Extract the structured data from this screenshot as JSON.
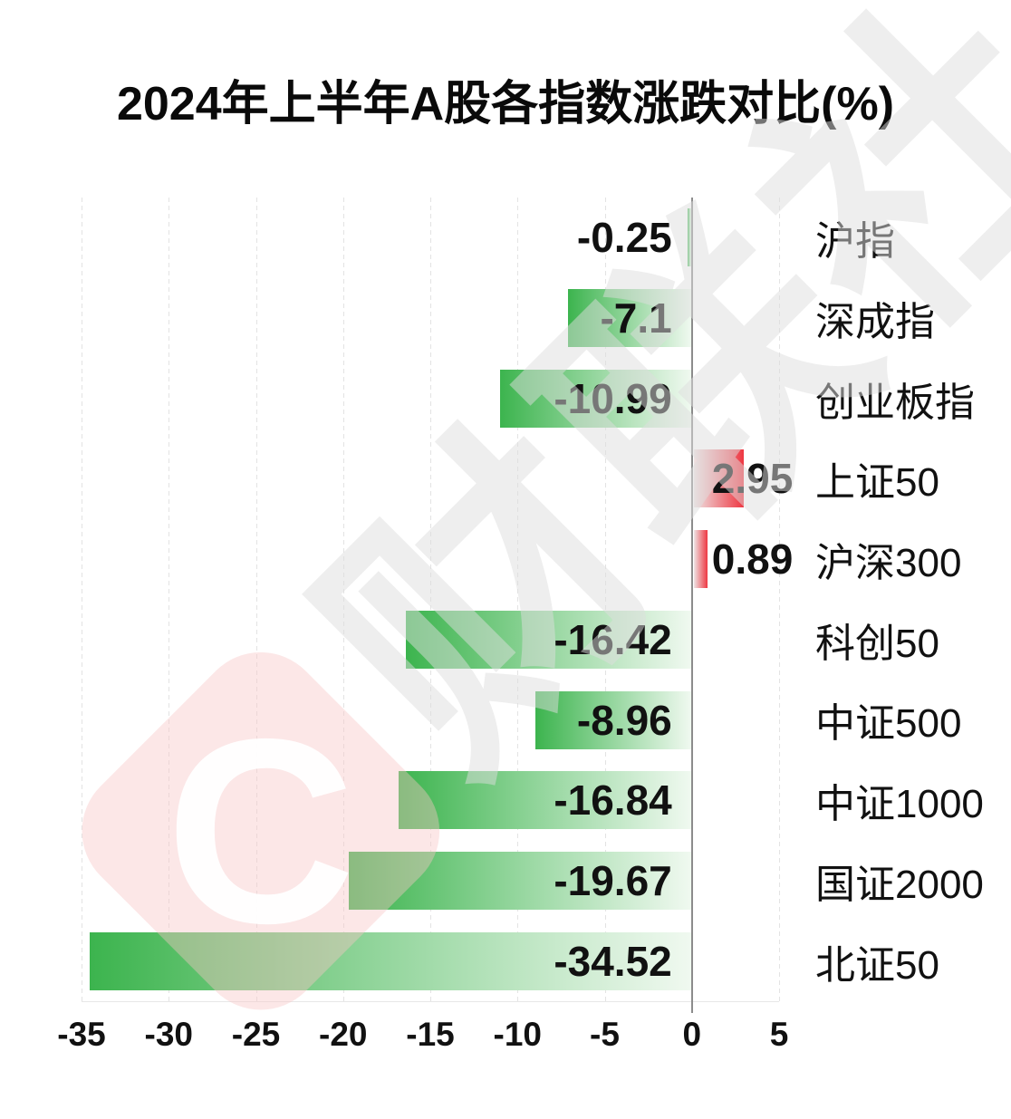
{
  "title": "2024年上半年A股各指数涨跌对比(%)",
  "watermark": {
    "logo_letter": "C",
    "text": "财联社"
  },
  "colors": {
    "negative_start": "#3cb44e",
    "negative_end": "#f0f9f0",
    "positive_start": "#eee3e3",
    "positive_end": "#ee3742",
    "axis_line": "#8c8c8c",
    "grid_line": "#e3e3e3",
    "label_text": "#111111",
    "watermark_text": "rgba(222,222,222,0.5)",
    "watermark_logo_bg": "rgba(247,198,198,0.42)"
  },
  "chart_data": {
    "type": "bar",
    "orientation": "horizontal",
    "title": "2024年上半年A股各指数涨跌对比(%)",
    "categories": [
      "沪指",
      "深成指",
      "创业板指",
      "上证50",
      "沪深300",
      "科创50",
      "中证500",
      "中证1000",
      "国证2000",
      "北证50"
    ],
    "values": [
      -0.25,
      -7.1,
      -10.99,
      2.95,
      0.89,
      -16.42,
      -8.96,
      -16.84,
      -19.67,
      -34.52
    ],
    "labels": [
      "-0.25",
      "-7.1",
      "-10.99",
      "2.95",
      "0.89",
      "-16.42",
      "-8.96",
      "-16.84",
      "-19.67",
      "-34.52"
    ],
    "xlim": [
      -35,
      5
    ],
    "x_ticks": [
      -35,
      -30,
      -25,
      -20,
      -15,
      -10,
      -5,
      0,
      5
    ],
    "x_tick_labels": [
      "-35",
      "-30",
      "-25",
      "-20",
      "-15",
      "-10",
      "-5",
      "0",
      "5"
    ],
    "xlabel": "",
    "ylabel": "",
    "grid": "vertical dashed gridlines at each tick, solid gray line at 0",
    "legend": "none",
    "color_rule": "negative values green gradient (dark away from zero), positive values red gradient (dark away from zero)"
  }
}
